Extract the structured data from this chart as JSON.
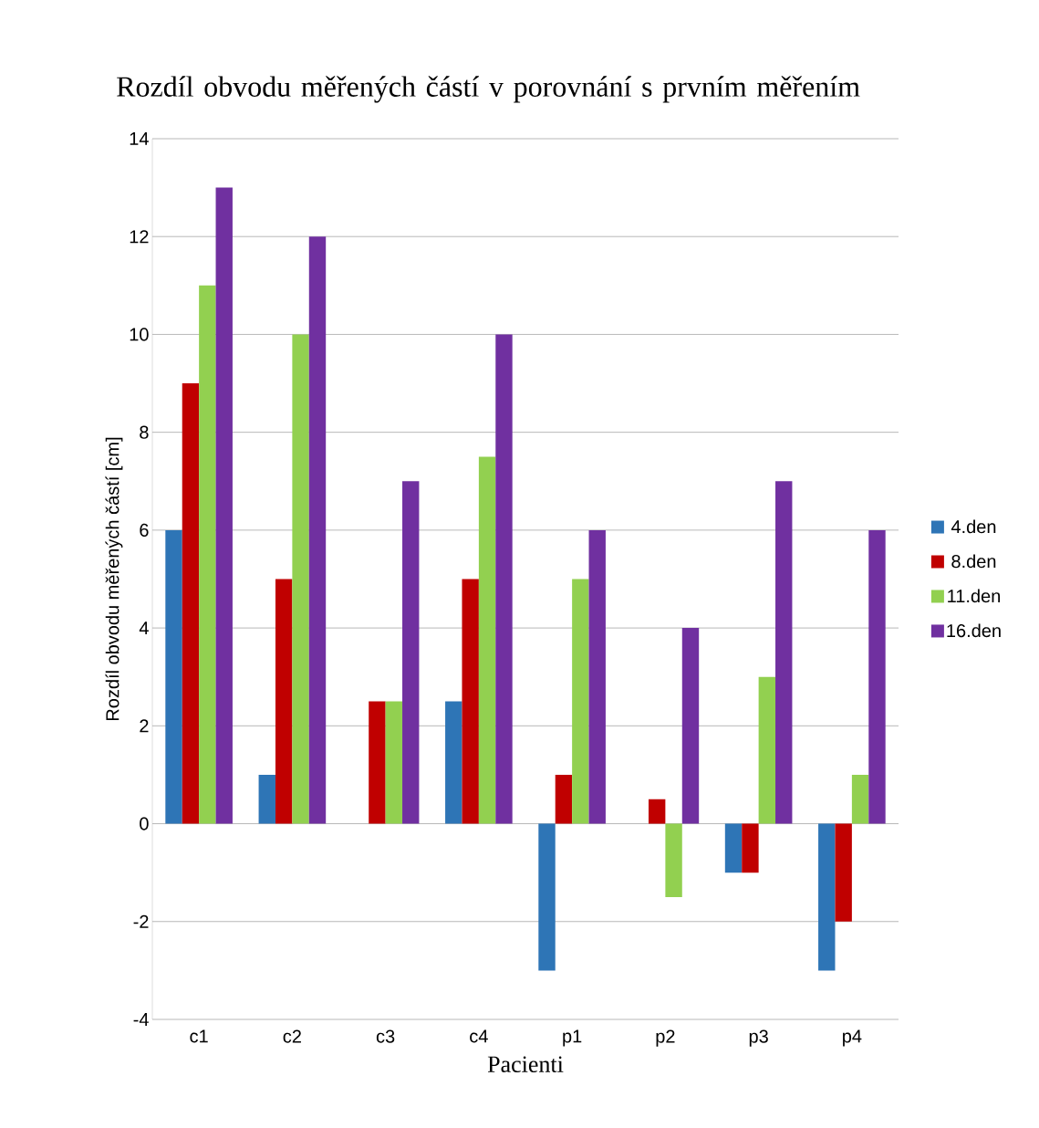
{
  "chart_data": {
    "type": "bar",
    "title": "Rozdíl obvodu měřených částí v porovnání s prvním měřením",
    "xlabel": "Pacienti",
    "ylabel": "Rozdíl obvodu měřených  částí [cm]",
    "categories": [
      "c1",
      "c2",
      "c3",
      "c4",
      "p1",
      "p2",
      "p3",
      "p4"
    ],
    "series": [
      {
        "name": "4.den",
        "color": "#2e75b6",
        "values": [
          6,
          1,
          0,
          2.5,
          -3,
          0,
          -1,
          -3
        ]
      },
      {
        "name": "8.den",
        "color": "#c00000",
        "values": [
          9,
          5,
          2.5,
          5,
          1,
          0.5,
          -1,
          -2
        ]
      },
      {
        "name": "11.den",
        "color": "#92d050",
        "values": [
          11,
          10,
          2.5,
          7.5,
          5,
          -1.5,
          3,
          1
        ]
      },
      {
        "name": "16.den",
        "color": "#7030a0",
        "values": [
          13,
          12,
          7,
          10,
          6,
          4,
          7,
          6
        ]
      }
    ],
    "ylim": [
      -4,
      14
    ],
    "yticks": [
      -4,
      -2,
      0,
      2,
      4,
      6,
      8,
      10,
      12,
      14
    ],
    "grid": "y",
    "legend": "right"
  }
}
